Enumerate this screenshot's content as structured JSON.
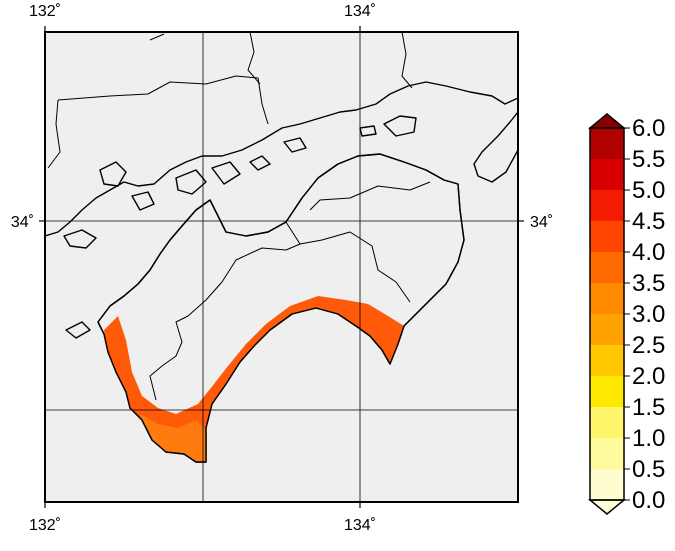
{
  "map": {
    "longitude_labels_top": [
      "132˚",
      "134˚"
    ],
    "longitude_labels_bottom": [
      "132˚",
      "134˚"
    ],
    "latitude_labels_left": [
      "34˚"
    ],
    "latitude_labels_right": [
      "34˚"
    ],
    "colors": {
      "background_sea": "#efefef",
      "land_main": "#ff2a05",
      "land_low": "#ff5a0a",
      "land_lower": "#ff7a0f"
    }
  },
  "colorbar": {
    "ticks": [
      "0.0",
      "0.5",
      "1.0",
      "1.5",
      "2.0",
      "2.5",
      "3.0",
      "3.5",
      "4.0",
      "4.5",
      "5.0",
      "5.5",
      "6.0"
    ],
    "colors": [
      "#fffcd0",
      "#fffa9e",
      "#fff56a",
      "#ffe800",
      "#ffc800",
      "#ffa200",
      "#ff8a00",
      "#ff6a00",
      "#ff4500",
      "#f31c00",
      "#d80000",
      "#b00000"
    ]
  }
}
